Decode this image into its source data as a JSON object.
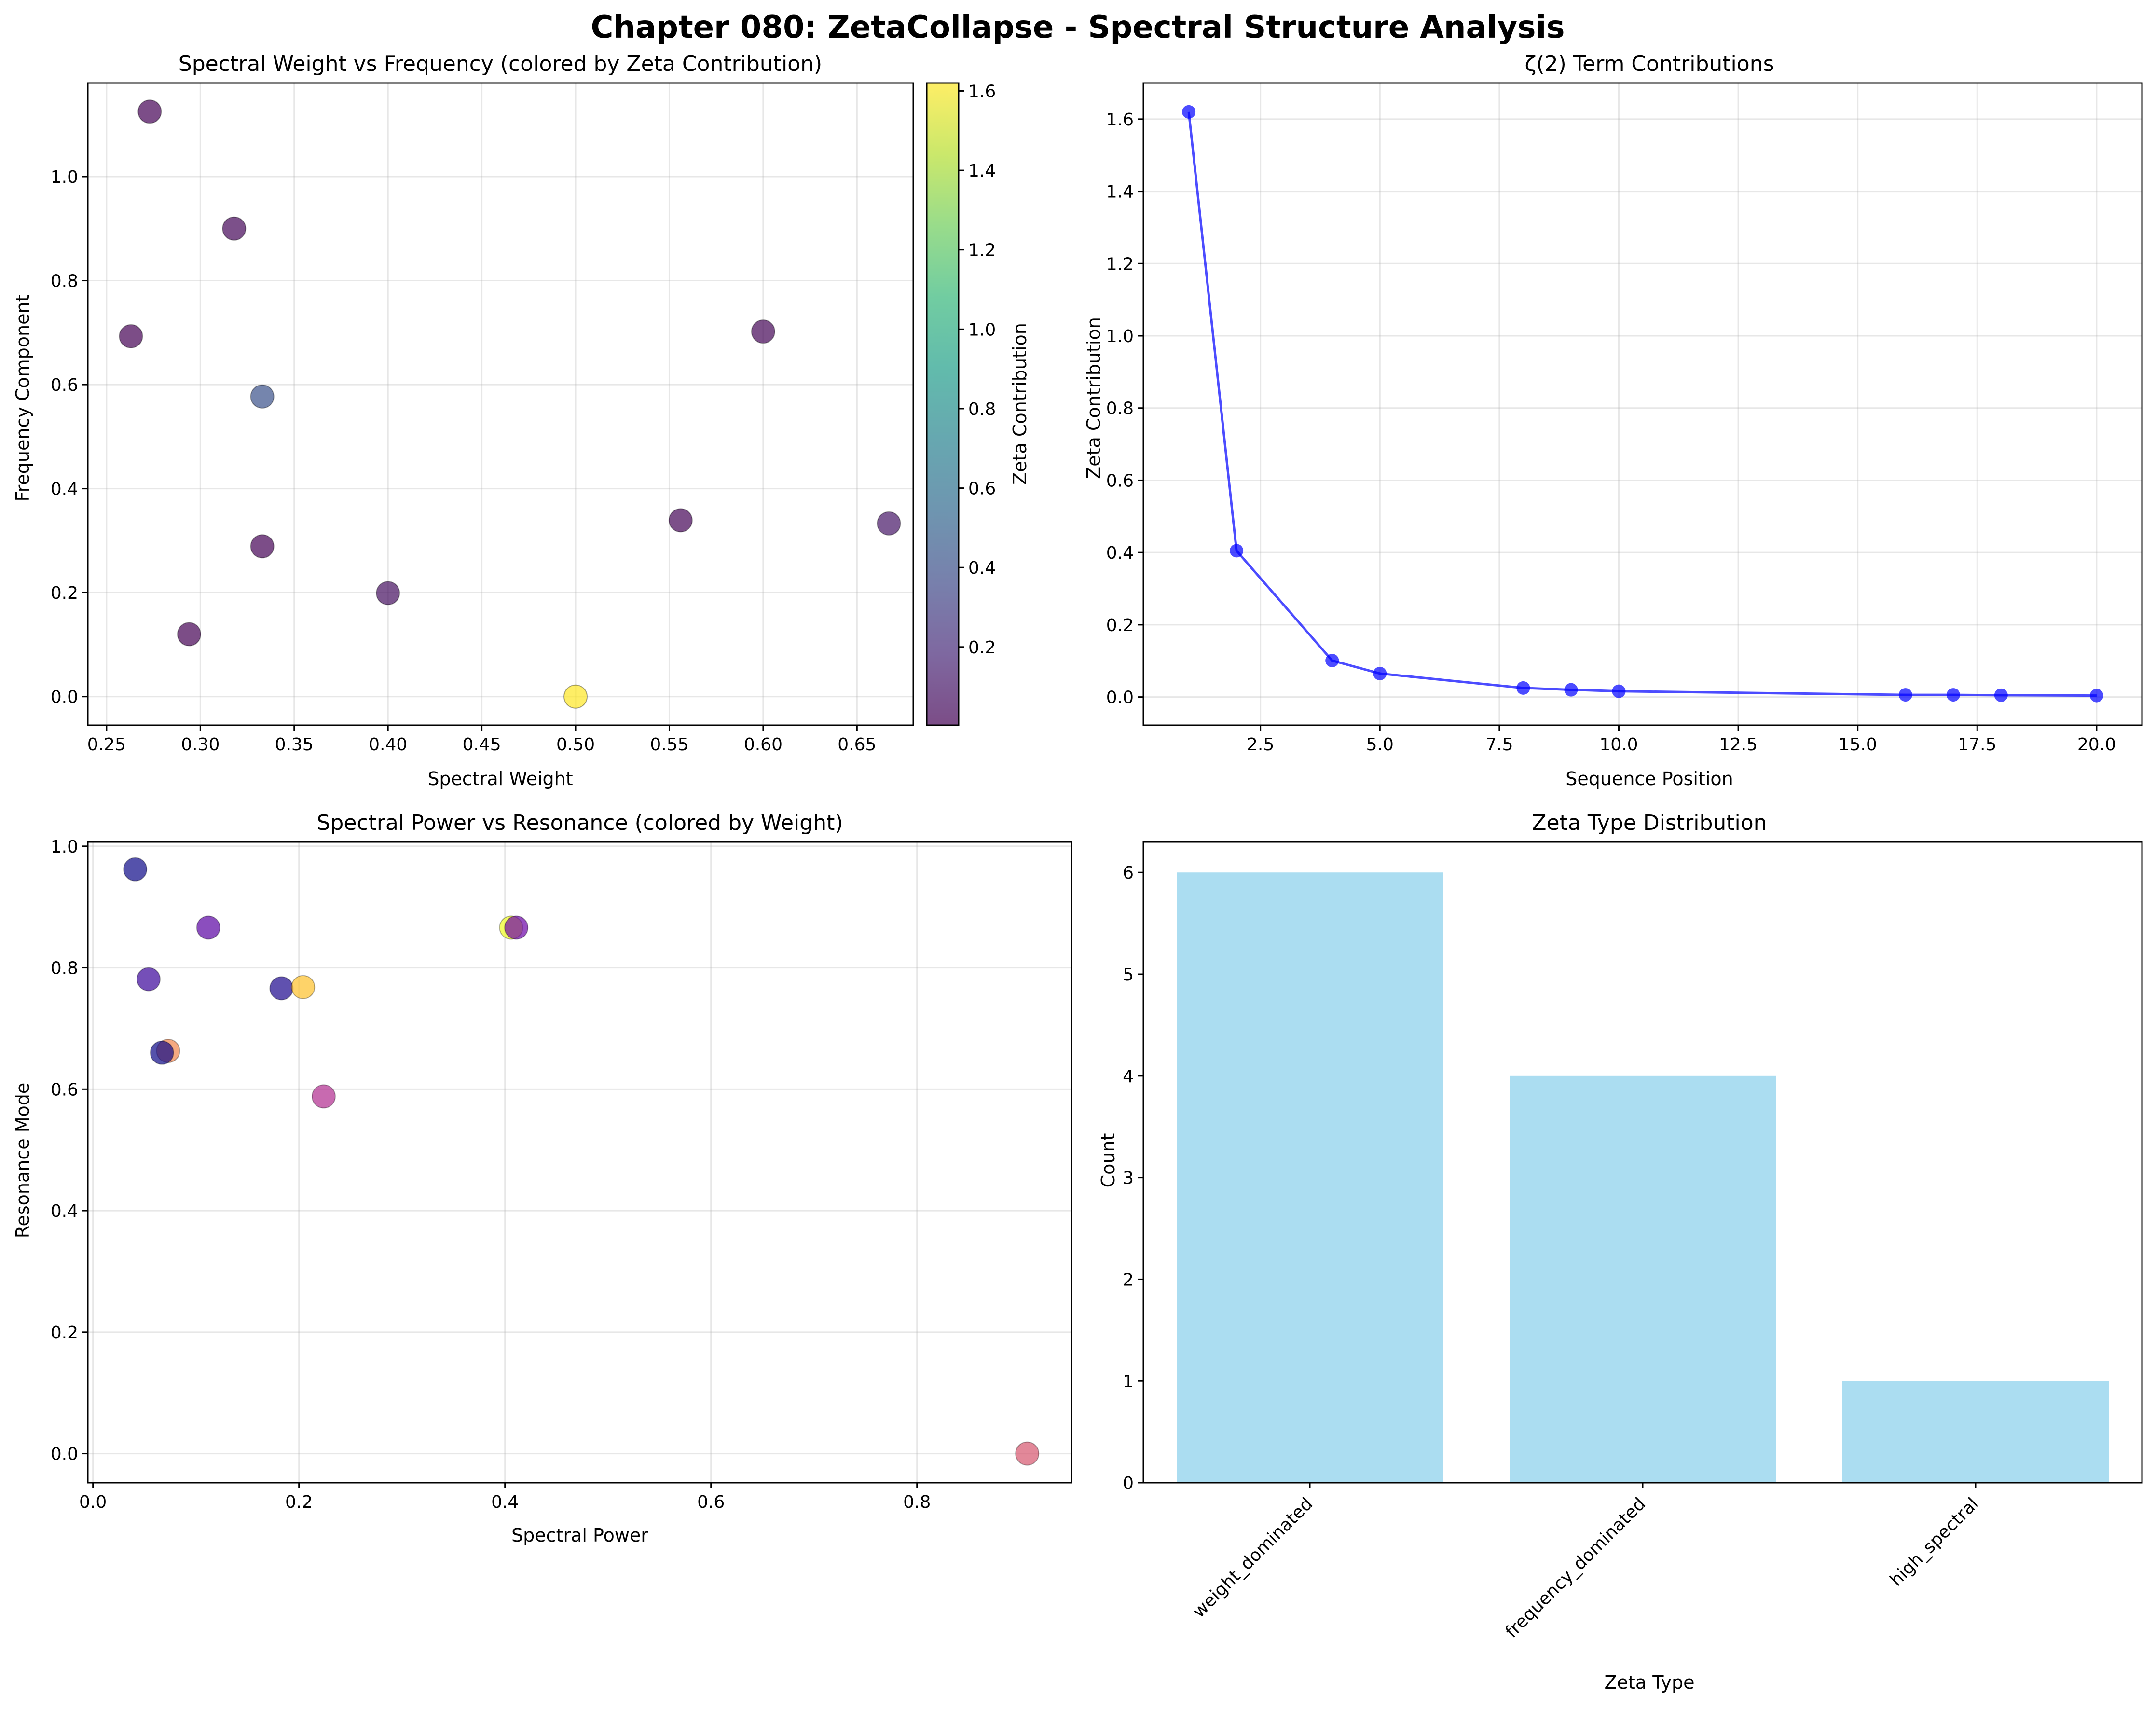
{
  "figure": {
    "title": "Chapter 080: ZetaCollapse - Spectral Structure Analysis"
  },
  "chart_data": [
    {
      "id": "weight-vs-frequency",
      "type": "scatter",
      "title": "Spectral Weight vs Frequency (colored by Zeta Contribution)",
      "xlabel": "Spectral Weight",
      "ylabel": "Frequency Component",
      "xlim": [
        0.24,
        0.68
      ],
      "ylim": [
        -0.055,
        1.18
      ],
      "xticks": [
        0.25,
        0.3,
        0.35,
        0.4,
        0.45,
        0.5,
        0.55,
        0.6,
        0.65
      ],
      "xtick_labels": [
        "0.25",
        "0.30",
        "0.35",
        "0.40",
        "0.45",
        "0.50",
        "0.55",
        "0.60",
        "0.65"
      ],
      "yticks": [
        0.0,
        0.2,
        0.4,
        0.6,
        0.8,
        1.0
      ],
      "ytick_labels": [
        "0.0",
        "0.2",
        "0.4",
        "0.6",
        "0.8",
        "1.0"
      ],
      "grid": true,
      "colormap": "viridis",
      "alpha": 0.7,
      "colorbar": {
        "label": "Zeta Contribution",
        "range": [
          0.003,
          1.62
        ],
        "ticks": [
          0.2,
          0.4,
          0.6,
          0.8,
          1.0,
          1.2,
          1.4,
          1.6
        ],
        "tick_labels": [
          "0.2",
          "0.4",
          "0.6",
          "0.8",
          "1.0",
          "1.2",
          "1.4",
          "1.6"
        ]
      },
      "points": [
        {
          "x": 0.273,
          "y": 1.125,
          "c": 0.006
        },
        {
          "x": 0.318,
          "y": 0.9,
          "c": 0.025
        },
        {
          "x": 0.263,
          "y": 0.693,
          "c": 0.004
        },
        {
          "x": 0.6,
          "y": 0.702,
          "c": 0.02
        },
        {
          "x": 0.333,
          "y": 0.577,
          "c": 0.405
        },
        {
          "x": 0.556,
          "y": 0.339,
          "c": 0.016
        },
        {
          "x": 0.667,
          "y": 0.333,
          "c": 0.1
        },
        {
          "x": 0.333,
          "y": 0.289,
          "c": 0.006
        },
        {
          "x": 0.4,
          "y": 0.199,
          "c": 0.064
        },
        {
          "x": 0.294,
          "y": 0.12,
          "c": 0.005
        },
        {
          "x": 0.5,
          "y": 0.0,
          "c": 1.62
        }
      ]
    },
    {
      "id": "zeta-term-contributions",
      "type": "line",
      "title": "ζ(2) Term Contributions",
      "xlabel": "Sequence Position",
      "ylabel": "Zeta Contribution",
      "xlim": [
        0.05,
        20.95
      ],
      "ylim": [
        -0.078,
        1.7
      ],
      "xticks": [
        2.5,
        5.0,
        7.5,
        10.0,
        12.5,
        15.0,
        17.5,
        20.0
      ],
      "xtick_labels": [
        "2.5",
        "5.0",
        "7.5",
        "10.0",
        "12.5",
        "15.0",
        "17.5",
        "20.0"
      ],
      "yticks": [
        0.0,
        0.2,
        0.4,
        0.6,
        0.8,
        1.0,
        1.2,
        1.4,
        1.6
      ],
      "ytick_labels": [
        "0.0",
        "0.2",
        "0.4",
        "0.6",
        "0.8",
        "1.0",
        "1.2",
        "1.4",
        "1.6"
      ],
      "grid": true,
      "color": "#0000ff",
      "x": [
        1,
        2,
        4,
        5,
        8,
        9,
        10,
        16,
        17,
        18,
        20
      ],
      "y": [
        1.62,
        0.405,
        0.101,
        0.065,
        0.025,
        0.02,
        0.016,
        0.006,
        0.006,
        0.005,
        0.004
      ]
    },
    {
      "id": "power-vs-resonance",
      "type": "scatter",
      "title": "Spectral Power vs Resonance (colored by Weight)",
      "xlabel": "Spectral Power",
      "ylabel": "Resonance Mode",
      "xlim": [
        -0.005,
        0.95
      ],
      "ylim": [
        -0.048,
        1.007
      ],
      "xticks": [
        0.0,
        0.2,
        0.4,
        0.6,
        0.8
      ],
      "xtick_labels": [
        "0.0",
        "0.2",
        "0.4",
        "0.6",
        "0.8"
      ],
      "yticks": [
        0.0,
        0.2,
        0.4,
        0.6,
        0.8,
        1.0
      ],
      "ytick_labels": [
        "0.0",
        "0.2",
        "0.4",
        "0.6",
        "0.8",
        "1.0"
      ],
      "grid": true,
      "colormap": "plasma",
      "alpha": 0.7,
      "points": [
        {
          "x": 0.041,
          "y": 0.962,
          "c": 0.263
        },
        {
          "x": 0.112,
          "y": 0.866,
          "c": 0.318
        },
        {
          "x": 0.054,
          "y": 0.781,
          "c": 0.294
        },
        {
          "x": 0.406,
          "y": 0.866,
          "c": 0.6
        },
        {
          "x": 0.411,
          "y": 0.866,
          "c": 0.333
        },
        {
          "x": 0.183,
          "y": 0.766,
          "c": 0.273
        },
        {
          "x": 0.204,
          "y": 0.768,
          "c": 0.556
        },
        {
          "x": 0.073,
          "y": 0.663,
          "c": 0.5
        },
        {
          "x": 0.067,
          "y": 0.66,
          "c": 0.263
        },
        {
          "x": 0.224,
          "y": 0.588,
          "c": 0.4
        },
        {
          "x": 0.907,
          "y": 0.0,
          "c": 0.45
        }
      ]
    },
    {
      "id": "zeta-type-distribution",
      "type": "bar",
      "title": "Zeta Type Distribution",
      "xlabel": "Zeta Type",
      "ylabel": "Count",
      "categories": [
        "weight_dominated",
        "frequency_dominated",
        "high_spectral"
      ],
      "values": [
        6,
        4,
        1
      ],
      "ylim": [
        0,
        6.3
      ],
      "yticks": [
        0,
        1,
        2,
        3,
        4,
        5,
        6
      ],
      "ytick_labels": [
        "0",
        "1",
        "2",
        "3",
        "4",
        "5",
        "6"
      ],
      "grid": false,
      "color": "#87ceeb",
      "alpha": 0.7
    }
  ]
}
